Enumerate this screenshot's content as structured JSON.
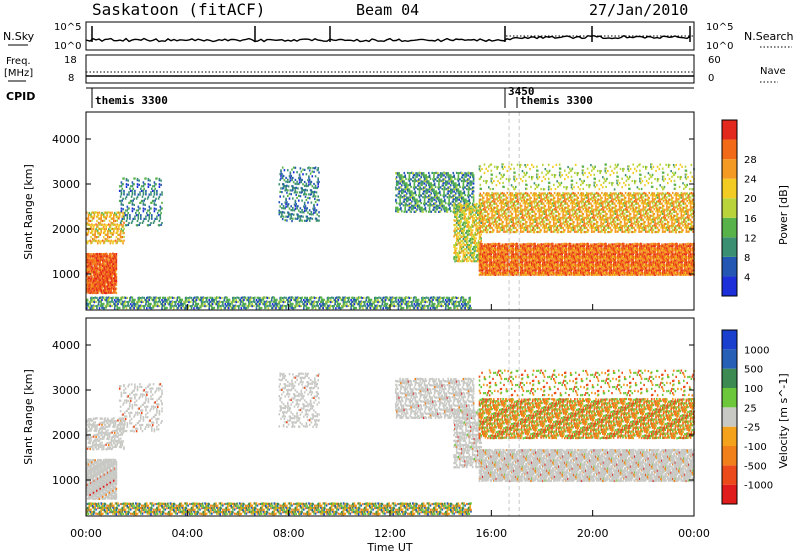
{
  "header": {
    "station": "Saskatoon (fitACF)",
    "beam": "Beam 04",
    "date": "27/Jan/2010"
  },
  "colors": {
    "power_scale": [
      "#1c2fd8",
      "#2457b4",
      "#3a8f73",
      "#58b24a",
      "#b8d43a",
      "#f2cc22",
      "#f49a22",
      "#f26a18",
      "#e3281d"
    ],
    "velocity_scale": [
      "#1a3fce",
      "#2560b6",
      "#3d8a52",
      "#6cc83a",
      "#c8c8c4",
      "#f4a21c",
      "#f2801a",
      "#ec4a1a",
      "#e01c1c"
    ],
    "ground_scatter": "#c8c8c4"
  },
  "chart_data": [
    {
      "type": "line",
      "name": "noise-panel",
      "left_label": "N.Sky",
      "right_label": "N.Search",
      "left_ticks": [
        "10^5",
        "10^0"
      ],
      "right_ticks": [
        "10^5",
        "10^0"
      ]
    },
    {
      "type": "line",
      "name": "frequency-panel",
      "left_label_top": "Freq.",
      "left_label_bottom": "[MHz]",
      "right_label": "Nave",
      "left_ticks": [
        "18",
        "8"
      ],
      "right_ticks": [
        "60",
        "0"
      ]
    },
    {
      "type": "table",
      "name": "cpid-panel",
      "label": "CPID",
      "entries": [
        {
          "time": "00:00",
          "text": "themis 3300"
        },
        {
          "time": "16:40",
          "text": "3450"
        },
        {
          "time": "17:05",
          "text": "themis 3300"
        }
      ]
    },
    {
      "type": "heatmap",
      "name": "power-panel",
      "ylabel": "Slant Range [km]",
      "colorbar_label": "Power [dB]",
      "colorbar_ticks": [
        "4",
        "8",
        "12",
        "16",
        "20",
        "24",
        "28"
      ],
      "y_ticks": [
        1000,
        2000,
        3000,
        4000
      ],
      "ylim": [
        200,
        4600
      ],
      "xlim_hours": [
        0,
        24
      ]
    },
    {
      "type": "heatmap",
      "name": "velocity-panel",
      "ylabel": "Slant Range [km]",
      "colorbar_label": "Velocity [m s^-1]",
      "colorbar_ticks": [
        "1000",
        "500",
        "100",
        "25",
        "-25",
        "-100",
        "-500",
        "-1000"
      ],
      "y_ticks": [
        1000,
        2000,
        3000,
        4000
      ],
      "ylim": [
        200,
        4600
      ],
      "xlim_hours": [
        0,
        24
      ]
    }
  ],
  "x_axis": {
    "label": "Time UT",
    "ticks": [
      "00:00",
      "04:00",
      "08:00",
      "12:00",
      "16:00",
      "20:00",
      "00:00"
    ]
  }
}
